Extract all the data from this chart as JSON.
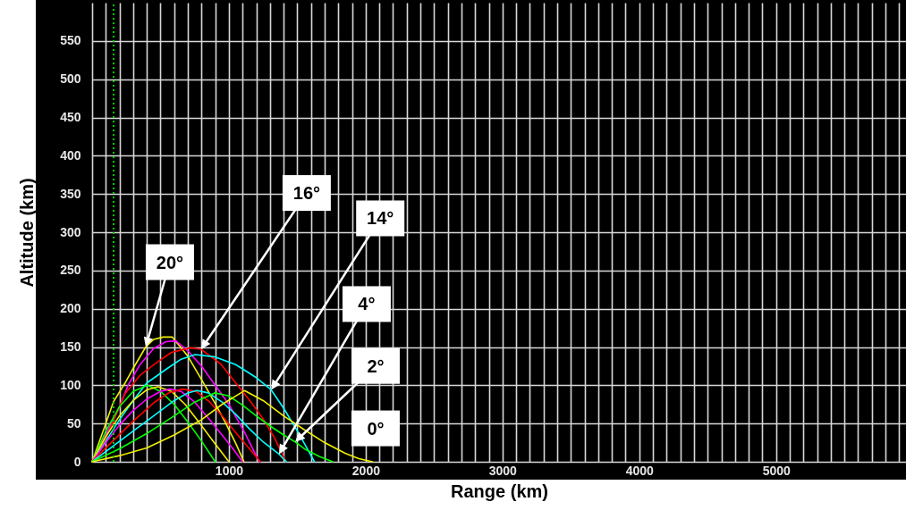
{
  "chart_data": {
    "type": "line",
    "xlabel": "Range (km)",
    "ylabel": "Altitude (km)",
    "xlim": [
      0,
      5950
    ],
    "ylim": [
      0,
      600
    ],
    "xticks": [
      {
        "value": 0,
        "label": null
      },
      {
        "value": 100,
        "label": null
      },
      {
        "value": 200,
        "label": null
      },
      {
        "value": 300,
        "label": null
      },
      {
        "value": 400,
        "label": null
      },
      {
        "value": 500,
        "label": null
      },
      {
        "value": 600,
        "label": null
      },
      {
        "value": 700,
        "label": null
      },
      {
        "value": 800,
        "label": null
      },
      {
        "value": 900,
        "label": null
      },
      1000,
      {
        "value": 1100,
        "label": null
      },
      {
        "value": 1200,
        "label": null
      },
      {
        "value": 1300,
        "label": null
      },
      {
        "value": 1400,
        "label": null
      },
      {
        "value": 1500,
        "label": null
      },
      {
        "value": 1600,
        "label": null
      },
      {
        "value": 1700,
        "label": null
      },
      {
        "value": 1800,
        "label": null
      },
      {
        "value": 1900,
        "label": null
      },
      2000,
      {
        "value": 2100,
        "label": null
      },
      {
        "value": 2200,
        "label": null
      },
      {
        "value": 2300,
        "label": null
      },
      {
        "value": 2400,
        "label": null
      },
      {
        "value": 2500,
        "label": null
      },
      {
        "value": 2600,
        "label": null
      },
      {
        "value": 2700,
        "label": null
      },
      {
        "value": 2800,
        "label": null
      },
      {
        "value": 2900,
        "label": null
      },
      3000,
      {
        "value": 3100,
        "label": null
      },
      {
        "value": 3200,
        "label": null
      },
      {
        "value": 3300,
        "label": null
      },
      {
        "value": 3400,
        "label": null
      },
      {
        "value": 3500,
        "label": null
      },
      {
        "value": 3600,
        "label": null
      },
      {
        "value": 3700,
        "label": null
      },
      {
        "value": 3800,
        "label": null
      },
      {
        "value": 3900,
        "label": null
      },
      4000,
      {
        "value": 4100,
        "label": null
      },
      {
        "value": 4200,
        "label": null
      },
      {
        "value": 4300,
        "label": null
      },
      {
        "value": 4400,
        "label": null
      },
      {
        "value": 4500,
        "label": null
      },
      {
        "value": 4600,
        "label": null
      },
      {
        "value": 4700,
        "label": null
      },
      {
        "value": 4800,
        "label": null
      },
      {
        "value": 4900,
        "label": null
      },
      5000,
      {
        "value": 5100,
        "label": null
      },
      {
        "value": 5200,
        "label": null
      },
      {
        "value": 5300,
        "label": null
      },
      {
        "value": 5400,
        "label": null
      },
      {
        "value": 5500,
        "label": null
      },
      {
        "value": 5600,
        "label": null
      },
      {
        "value": 5700,
        "label": null
      },
      {
        "value": 5800,
        "label": null
      },
      {
        "value": 5900,
        "label": null
      }
    ],
    "yticks": [
      0,
      50,
      100,
      150,
      200,
      250,
      300,
      350,
      400,
      450,
      500,
      550
    ],
    "grid": true,
    "series": [
      {
        "color": "#f0f000",
        "x": [
          0,
          80,
          155,
          241,
          300,
          392,
          450,
          520,
          585,
          700,
          808,
          900,
          975,
          1050,
          1110
        ],
        "values": [
          0,
          40,
          78,
          103,
          122,
          150,
          160,
          163,
          163,
          138,
          105,
          76,
          51,
          24,
          0
        ]
      },
      {
        "color": "#ff00ff",
        "x": [
          0,
          100,
          200,
          263,
          350,
          450,
          540,
          612,
          700,
          800,
          900,
          1000,
          1113,
          1222
        ],
        "values": [
          0,
          35,
          72,
          100,
          127,
          148,
          157,
          158,
          145,
          125,
          100,
          75,
          39,
          0
        ]
      },
      {
        "color": "#ff0000",
        "x": [
          0,
          100,
          241,
          350,
          459,
          580,
          721,
          797,
          939,
          1050,
          1157,
          1250,
          1331,
          1418
        ],
        "values": [
          0,
          30,
          89,
          113,
          128,
          143,
          149,
          147,
          128,
          103,
          79,
          56,
          32,
          0
        ]
      },
      {
        "color": "#00ffff",
        "x": [
          0,
          100,
          200,
          300,
          400,
          550,
          650,
          753,
          900,
          1050,
          1200,
          1309,
          1400,
          1505,
          1570,
          1625
        ],
        "values": [
          0,
          27,
          55,
          80,
          103,
          122,
          134,
          140,
          137,
          127,
          110,
          94,
          70,
          39,
          18,
          0
        ]
      },
      {
        "color": "#00ff00",
        "x": [
          0,
          100,
          200,
          300,
          405,
          500,
          600,
          700,
          800,
          900
        ],
        "values": [
          0,
          40,
          72,
          92,
          100,
          92,
          75,
          52,
          27,
          0
        ]
      },
      {
        "color": "#f0f000",
        "x": [
          0,
          100,
          200,
          300,
          400,
          481,
          580,
          680,
          780,
          880,
          1000
        ],
        "values": [
          0,
          33,
          60,
          80,
          94,
          98,
          92,
          75,
          52,
          28,
          0
        ]
      },
      {
        "color": "#ff00ff",
        "x": [
          0,
          100,
          200,
          300,
          400,
          500,
          569,
          650,
          750,
          850,
          950,
          1030,
          1100
        ],
        "values": [
          0,
          25,
          48,
          67,
          82,
          92,
          95,
          92,
          78,
          57,
          35,
          17,
          0
        ]
      },
      {
        "color": "#ff0000",
        "x": [
          0,
          150,
          300,
          450,
          560,
          660,
          760,
          860,
          960,
          1060,
          1150,
          1230
        ],
        "values": [
          0,
          27,
          53,
          77,
          90,
          95,
          92,
          78,
          58,
          36,
          17,
          0
        ]
      },
      {
        "color": "#00ffff",
        "x": [
          0,
          150,
          300,
          450,
          600,
          700,
          765,
          850,
          950,
          1050,
          1150,
          1250,
          1366,
          1420
        ],
        "values": [
          0,
          20,
          40,
          60,
          80,
          90,
          93,
          90,
          78,
          62,
          43,
          26,
          10,
          0
        ]
      },
      {
        "color": "#00ff00",
        "x": [
          0,
          200,
          400,
          600,
          750,
          896,
          1000,
          1100,
          1200,
          1300,
          1400,
          1484,
          1560,
          1660,
          1760
        ],
        "values": [
          0,
          17,
          37,
          60,
          78,
          90,
          86,
          74,
          60,
          47,
          35,
          26,
          16,
          7,
          0
        ]
      },
      {
        "color": "#f0f000",
        "x": [
          0,
          200,
          400,
          600,
          800,
          950,
          1114,
          1250,
          1400,
          1550,
          1700,
          1850,
          1950,
          2050
        ],
        "values": [
          0,
          8,
          18,
          35,
          55,
          75,
          93,
          80,
          60,
          42,
          25,
          11,
          4,
          0
        ]
      }
    ],
    "ref_lines": [
      {
        "axis": "x",
        "value": 157,
        "color": "#00cc00",
        "line_style": "dotted"
      }
    ],
    "annotations": [
      {
        "text": "20°",
        "x": 392,
        "y": 150
      },
      {
        "text": "16°",
        "x": 797,
        "y": 147
      },
      {
        "text": "14°",
        "x": 1309,
        "y": 94
      },
      {
        "text": "4°",
        "x": 1366,
        "y": 10
      },
      {
        "text": "2°",
        "x": 1484,
        "y": 26
      },
      {
        "text": "0°",
        "x": 1850,
        "y": 11
      }
    ]
  }
}
